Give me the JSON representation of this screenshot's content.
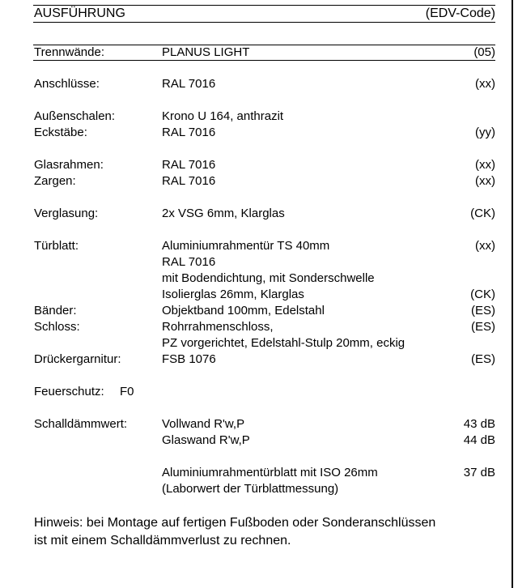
{
  "header": {
    "title": "AUSFÜHRUNG",
    "code_header": "(EDV-Code)"
  },
  "rows": [
    {
      "label": "Trennwände:",
      "value": "PLANUS LIGHT",
      "code": "(05)"
    },
    {
      "label": "Anschlüsse:",
      "value": "RAL 7016",
      "code": "(xx)"
    },
    {
      "label": "Außenschalen:",
      "value": "Krono U 164, anthrazit"
    },
    {
      "label": "Eckstäbe:",
      "value": "RAL 7016",
      "code": "(yy)"
    },
    {
      "label": "Glasrahmen:",
      "value": "RAL 7016",
      "code": "(xx)"
    },
    {
      "label": "Zargen:",
      "value": "RAL 7016",
      "code": "(xx)"
    },
    {
      "label": "Verglasung:",
      "value": "2x VSG 6mm, Klarglas",
      "code": "(CK)"
    },
    {
      "label": "Türblatt:",
      "value": "Aluminiumrahmentür TS 40mm",
      "code": "(xx)"
    },
    {
      "value": "RAL 7016"
    },
    {
      "value": "mit Bodendichtung, mit Sonderschwelle"
    },
    {
      "value": "Isolierglas 26mm, Klarglas",
      "code": "(CK)"
    },
    {
      "label": "Bänder:",
      "value": "Objektband 100mm, Edelstahl",
      "code": "(ES)"
    },
    {
      "label": "Schloss:",
      "value": "Rohrrahmenschloss,",
      "code": "(ES)"
    },
    {
      "value": "PZ vorgerichtet, Edelstahl-Stulp 20mm, eckig"
    },
    {
      "label": "Drückergarnitur:",
      "value": "FSB 1076",
      "code": "(ES)"
    }
  ],
  "fire": {
    "label": "Feuerschutz:",
    "value": "F0"
  },
  "sound": {
    "label": "Schalldämmwert:",
    "items": [
      {
        "value": "Vollwand  R'w,P",
        "db": "43 dB"
      },
      {
        "value": "Glaswand R'w,P",
        "db": "44 dB"
      },
      {
        "value": "Aluminiumrahmentürblatt mit ISO 26mm",
        "db": "37 dB"
      },
      {
        "value": "(Laborwert der Türblattmessung)"
      }
    ]
  },
  "note": {
    "line1": "Hinweis: bei Montage auf fertigen Fußboden oder Sonderanschlüssen",
    "line2": "ist mit einem Schalldämmverlust zu rechnen."
  }
}
